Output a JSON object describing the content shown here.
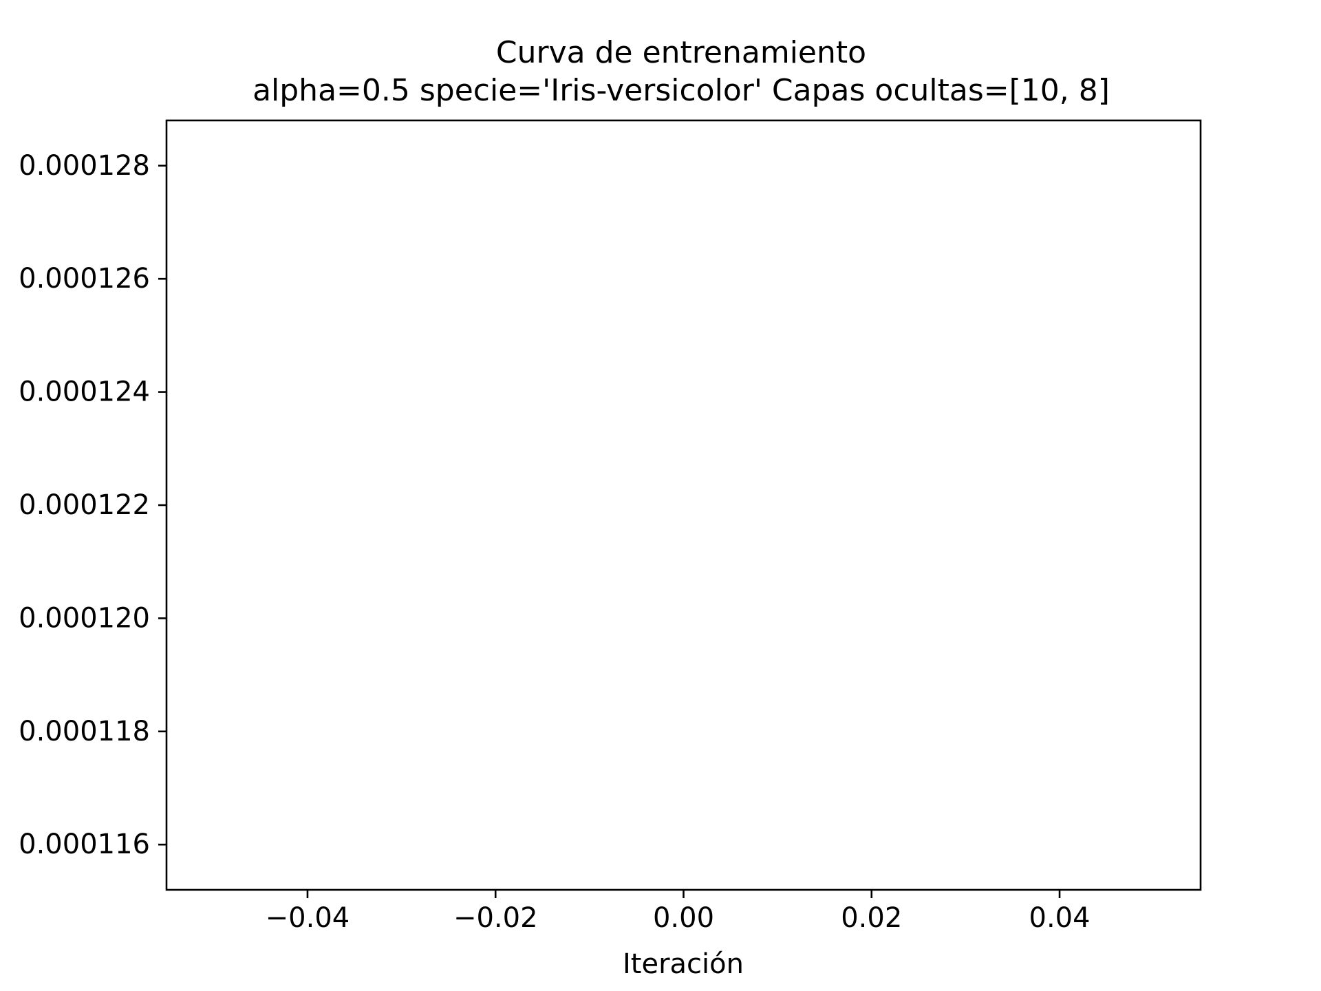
{
  "chart_data": {
    "type": "line",
    "title": "Curva de entrenamiento",
    "subtitle": "alpha=0.5 specie='Iris-versicolor' Capas ocultas=[10, 8]",
    "xlabel": "Iteración",
    "ylabel": "",
    "xlim": [
      -0.055,
      0.055
    ],
    "ylim": [
      0.0001152,
      0.0001288
    ],
    "x_ticks": [
      -0.04,
      -0.02,
      0.0,
      0.02,
      0.04
    ],
    "x_tick_labels": [
      "−0.04",
      "−0.02",
      "0.00",
      "0.02",
      "0.04"
    ],
    "y_ticks": [
      0.000116,
      0.000118,
      0.00012,
      0.000122,
      0.000124,
      0.000126,
      0.000128
    ],
    "y_tick_labels": [
      "0.000116",
      "0.000118",
      "0.000120",
      "0.000122",
      "0.000124",
      "0.000126",
      "0.000128"
    ],
    "series": [
      {
        "values": []
      }
    ],
    "grid": false,
    "legend": "none"
  }
}
